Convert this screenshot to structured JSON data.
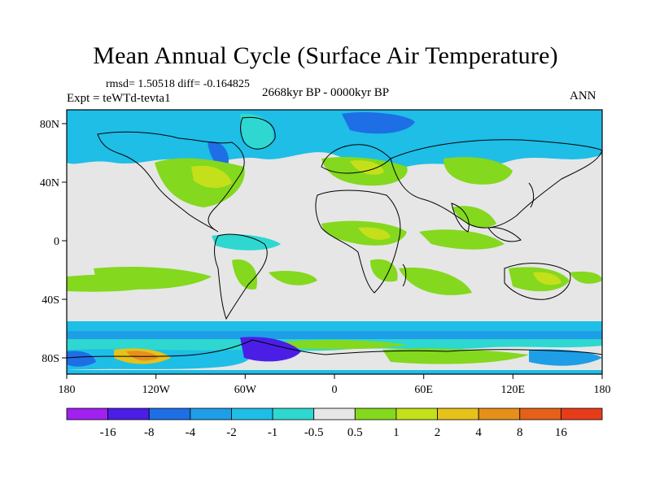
{
  "title": "Mean Annual Cycle (Surface Air Temperature)",
  "stats_text": "rmsd= 1.50518 diff= -0.164825",
  "experiment_label": "Expt = teWTd-tevta1",
  "period_label": "2668kyr BP - 0000kyr BP",
  "season_label": "ANN",
  "lon_ticks": [
    "180",
    "120W",
    "60W",
    "0",
    "60E",
    "120E",
    "180"
  ],
  "lat_ticks": [
    "80N",
    "40N",
    "0",
    "40S",
    "80S"
  ],
  "colorbar": {
    "labels": [
      "-16",
      "-8",
      "-4",
      "-2",
      "-1",
      "-0.5",
      "0.5",
      "1",
      "2",
      "4",
      "8",
      "16"
    ],
    "colors": [
      "#a020f0",
      "#4b1ee6",
      "#1e6ee6",
      "#1e9ee6",
      "#1ebee6",
      "#2ed8d0",
      "#e6e6e6",
      "#84d81e",
      "#c4e01a",
      "#e6c21a",
      "#e6901a",
      "#e6601a",
      "#e63c1a"
    ]
  }
}
